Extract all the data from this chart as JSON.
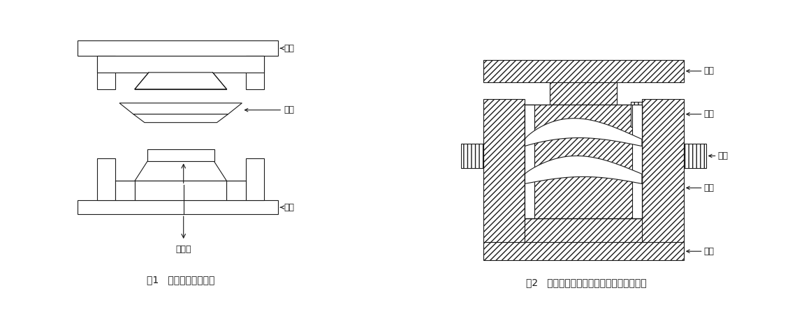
{
  "fig1_caption": "图1   模压成型原理示图",
  "fig2_caption": "图2   复合材料发动机叶片模压成型模具示图",
  "labels_fig1": {
    "yin_mo": "阴模",
    "mao_pi": "毛坯",
    "yang_mo": "阳模",
    "ce_wen": "测温点"
  },
  "labels_fig2": {
    "shang_mo": "上模",
    "dang_kuai": "挡块",
    "kuang_jia": "框架",
    "di_mo": "底模",
    "di_ban": "底板"
  },
  "line_color": "#1a1a1a",
  "bg_color": "#ffffff",
  "font_size_label": 9,
  "font_size_caption": 10
}
